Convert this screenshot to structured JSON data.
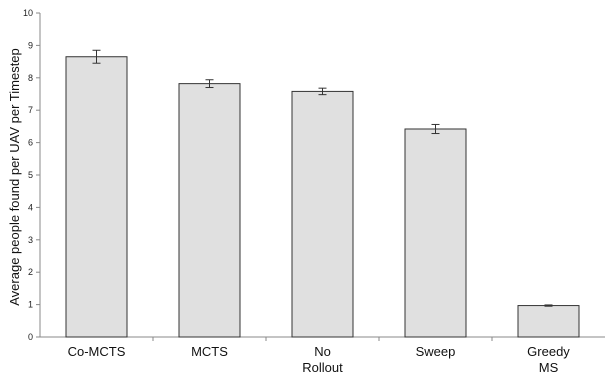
{
  "chart_data": {
    "type": "bar",
    "title": "",
    "xlabel": "",
    "ylabel": "Average people found per UAV per Timestep",
    "ylim": [
      0,
      10
    ],
    "yticks": [
      0,
      1,
      2,
      3,
      4,
      5,
      6,
      7,
      8,
      9,
      10
    ],
    "grid": false,
    "categories": [
      [
        "Co-MCTS"
      ],
      [
        "MCTS"
      ],
      [
        "No",
        "Rollout"
      ],
      [
        "Sweep"
      ],
      [
        "Greedy",
        "MS"
      ]
    ],
    "values": [
      8.65,
      7.82,
      7.58,
      6.42,
      0.97
    ],
    "error_bars": [
      0.2,
      0.12,
      0.1,
      0.14,
      0.02
    ],
    "bar_color": "#e0e0e0",
    "bar_edge_color": "#333333"
  }
}
